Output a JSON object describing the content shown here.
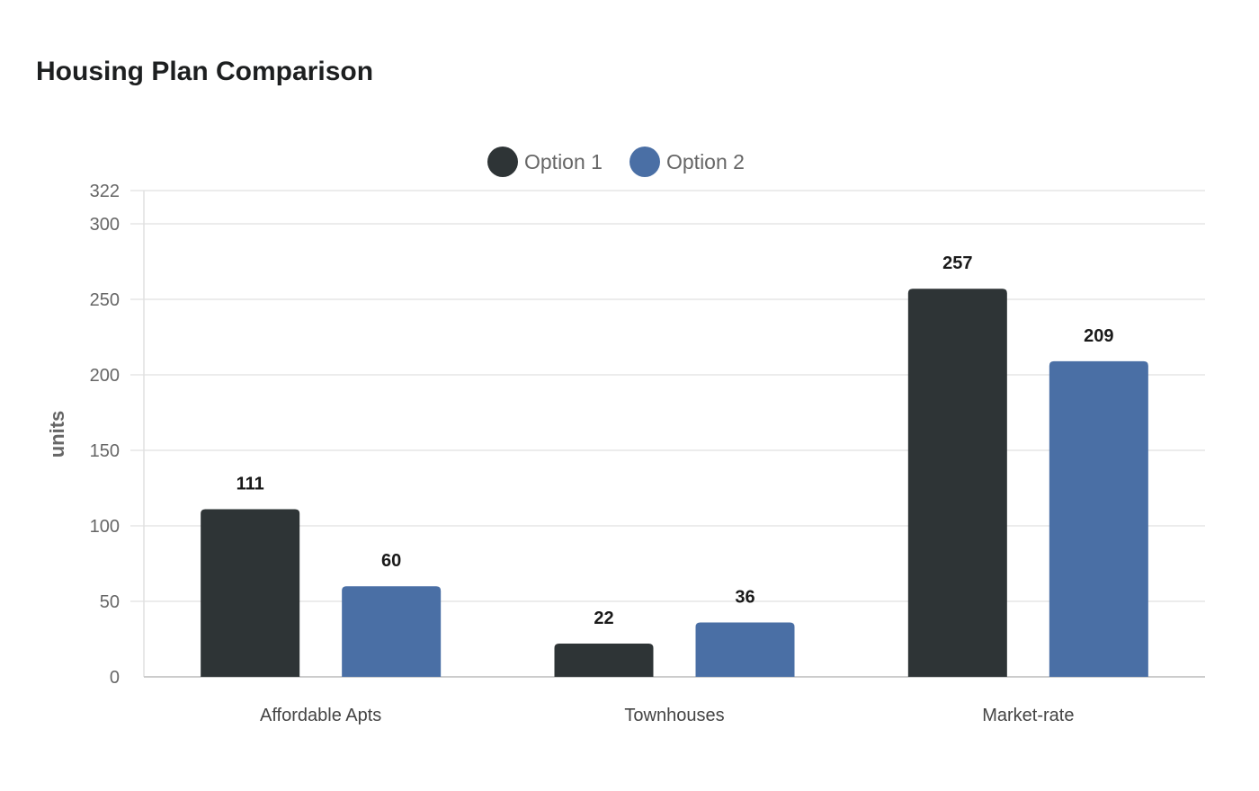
{
  "chart_data": {
    "type": "bar",
    "title": "Housing Plan Comparison",
    "xlabel": "",
    "ylabel": "units",
    "categories": [
      "Affordable Apts",
      "Townhouses",
      "Market-rate"
    ],
    "series": [
      {
        "name": "Option 1",
        "color": "#2e3436",
        "values": [
          111,
          22,
          257
        ]
      },
      {
        "name": "Option 2",
        "color": "#4a6fa5",
        "values": [
          60,
          36,
          209
        ]
      }
    ],
    "ylim": [
      0,
      322
    ],
    "yticks": [
      0,
      50,
      100,
      150,
      200,
      250,
      300,
      322
    ],
    "grid": true,
    "legend_position": "top-center",
    "data_labels": true
  }
}
